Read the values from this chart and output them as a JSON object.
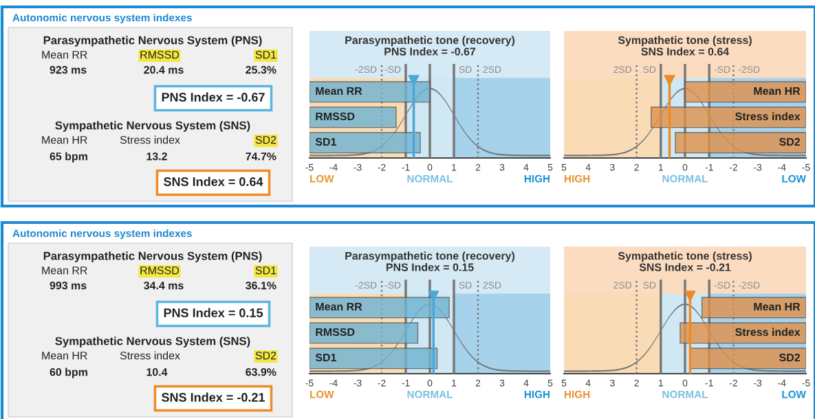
{
  "chart_data": [
    {
      "type": "other",
      "title": "Autonomic nervous system indexes",
      "annotations": [
        "Parasympathetic Nervous System (PNS)",
        "Mean RR",
        "RMSSD",
        "SD1",
        "923 ms",
        "20.4 ms",
        "25.3%",
        "PNS Index = -0.67",
        "Sympathetic Nervous System (SNS)",
        "Mean HR",
        "Stress index",
        "SD2",
        "65 bpm",
        "13.2",
        "74.7%",
        "SNS Index = 0.64"
      ]
    },
    {
      "type": "bar",
      "title": "Parasympathetic tone (recovery)",
      "subtitle": "PNS Index = -0.67",
      "orientation": "horizontal",
      "categories": [
        "Mean RR",
        "RMSSD",
        "SD1"
      ],
      "series": [
        {
          "color": "#6fb3d2",
          "base": [
            -5,
            -5,
            -5
          ],
          "values": [
            5.0,
            3.6,
            4.6
          ]
        }
      ],
      "xlim": [
        -5,
        5
      ],
      "xticks": [
        -5,
        -4,
        -3,
        -2,
        -1,
        0,
        1,
        2,
        3,
        4,
        5
      ],
      "bands": [
        {
          "axis": "x",
          "from": -5,
          "to": -1,
          "label": "LOW",
          "color": "#f9dcb6"
        },
        {
          "axis": "x",
          "from": -1,
          "to": 1,
          "label": "NORMAL",
          "color": "#cfe8f4"
        },
        {
          "axis": "x",
          "from": 1,
          "to": 5,
          "label": "HIGH",
          "color": "#a6d2ec"
        }
      ],
      "ref_lines": [
        {
          "axis": "x",
          "value": -2,
          "label": "-2SD",
          "line_style": "dotted"
        },
        {
          "axis": "x",
          "value": -1,
          "label": "-SD",
          "line_style": "solid"
        },
        {
          "axis": "x",
          "value": 0,
          "line_style": "solid"
        },
        {
          "axis": "x",
          "value": 1,
          "label": "SD",
          "line_style": "solid"
        },
        {
          "axis": "x",
          "value": 2,
          "label": "2SD",
          "line_style": "dotted"
        },
        {
          "axis": "x",
          "value": -0.67,
          "color": "#4aa8d8",
          "line_style": "solid"
        }
      ]
    },
    {
      "type": "bar",
      "title": "Sympathetic tone (stress)",
      "subtitle": "SNS Index = 0.64",
      "orientation": "horizontal",
      "categories": [
        "Mean HR",
        "Stress index",
        "SD2"
      ],
      "series": [
        {
          "color": "#e0914a",
          "base": [
            -5,
            -5,
            -5
          ],
          "values": [
            5.0,
            6.4,
            5.4
          ]
        }
      ],
      "xlim": [
        5,
        -5
      ],
      "xticks": [
        5,
        4,
        3,
        2,
        1,
        0,
        -1,
        -2,
        -3,
        -4,
        -5
      ],
      "bands": [
        {
          "axis": "x",
          "from": 5,
          "to": 1,
          "label": "HIGH",
          "color": "#f9dcb6"
        },
        {
          "axis": "x",
          "from": 1,
          "to": -1,
          "label": "NORMAL",
          "color": "#cfe8f4"
        },
        {
          "axis": "x",
          "from": -1,
          "to": -5,
          "label": "LOW",
          "color": "#a6d2ec"
        }
      ],
      "ref_lines": [
        {
          "axis": "x",
          "value": 2,
          "label": "2SD",
          "line_style": "dotted"
        },
        {
          "axis": "x",
          "value": 1,
          "label": "SD",
          "line_style": "solid"
        },
        {
          "axis": "x",
          "value": 0,
          "line_style": "solid"
        },
        {
          "axis": "x",
          "value": -1,
          "label": "-SD",
          "line_style": "solid"
        },
        {
          "axis": "x",
          "value": -2,
          "label": "-2SD",
          "line_style": "dotted"
        },
        {
          "axis": "x",
          "value": 0.64,
          "color": "#f08a24",
          "line_style": "solid"
        }
      ]
    },
    {
      "type": "other",
      "title": "Autonomic nervous system indexes",
      "annotations": [
        "Parasympathetic Nervous System (PNS)",
        "Mean RR",
        "RMSSD",
        "SD1",
        "993 ms",
        "34.4 ms",
        "36.1%",
        "PNS Index = 0.15",
        "Sympathetic Nervous System (SNS)",
        "Mean HR",
        "Stress index",
        "SD2",
        "60 bpm",
        "10.4",
        "63.9%",
        "SNS Index = -0.21"
      ]
    },
    {
      "type": "bar",
      "title": "Parasympathetic tone (recovery)",
      "subtitle": "PNS Index = 0.15",
      "orientation": "horizontal",
      "categories": [
        "Mean RR",
        "RMSSD",
        "SD1"
      ],
      "series": [
        {
          "color": "#6fb3d2",
          "base": [
            -5,
            -5,
            -5
          ],
          "values": [
            5.8,
            4.5,
            5.3
          ]
        }
      ],
      "xlim": [
        -5,
        5
      ],
      "xticks": [
        -5,
        -4,
        -3,
        -2,
        -1,
        0,
        1,
        2,
        3,
        4,
        5
      ],
      "bands": [
        {
          "axis": "x",
          "from": -5,
          "to": -1,
          "label": "LOW",
          "color": "#f9dcb6"
        },
        {
          "axis": "x",
          "from": -1,
          "to": 1,
          "label": "NORMAL",
          "color": "#cfe8f4"
        },
        {
          "axis": "x",
          "from": 1,
          "to": 5,
          "label": "HIGH",
          "color": "#a6d2ec"
        }
      ],
      "ref_lines": [
        {
          "axis": "x",
          "value": -2,
          "label": "-2SD",
          "line_style": "dotted"
        },
        {
          "axis": "x",
          "value": -1,
          "label": "-SD",
          "line_style": "solid"
        },
        {
          "axis": "x",
          "value": 0,
          "line_style": "solid"
        },
        {
          "axis": "x",
          "value": 1,
          "label": "SD",
          "line_style": "solid"
        },
        {
          "axis": "x",
          "value": 2,
          "label": "2SD",
          "line_style": "dotted"
        },
        {
          "axis": "x",
          "value": 0.15,
          "color": "#4aa8d8",
          "line_style": "solid"
        }
      ]
    },
    {
      "type": "bar",
      "title": "Sympathetic tone (stress)",
      "subtitle": "SNS Index = -0.21",
      "orientation": "horizontal",
      "categories": [
        "Mean HR",
        "Stress index",
        "SD2"
      ],
      "series": [
        {
          "color": "#e0914a",
          "base": [
            -5,
            -5,
            -5
          ],
          "values": [
            4.3,
            5.2,
            4.8
          ]
        }
      ],
      "xlim": [
        5,
        -5
      ],
      "xticks": [
        5,
        4,
        3,
        2,
        1,
        0,
        -1,
        -2,
        -3,
        -4,
        -5
      ],
      "bands": [
        {
          "axis": "x",
          "from": 5,
          "to": 1,
          "label": "HIGH",
          "color": "#f9dcb6"
        },
        {
          "axis": "x",
          "from": 1,
          "to": -1,
          "label": "NORMAL",
          "color": "#cfe8f4"
        },
        {
          "axis": "x",
          "from": -1,
          "to": -5,
          "label": "LOW",
          "color": "#a6d2ec"
        }
      ],
      "ref_lines": [
        {
          "axis": "x",
          "value": 2,
          "label": "2SD",
          "line_style": "dotted"
        },
        {
          "axis": "x",
          "value": 1,
          "label": "SD",
          "line_style": "solid"
        },
        {
          "axis": "x",
          "value": 0,
          "line_style": "solid"
        },
        {
          "axis": "x",
          "value": -1,
          "label": "-SD",
          "line_style": "solid"
        },
        {
          "axis": "x",
          "value": -2,
          "label": "-2SD",
          "line_style": "dotted"
        },
        {
          "axis": "x",
          "value": -0.21,
          "color": "#f08a24",
          "line_style": "solid"
        }
      ]
    }
  ]
}
